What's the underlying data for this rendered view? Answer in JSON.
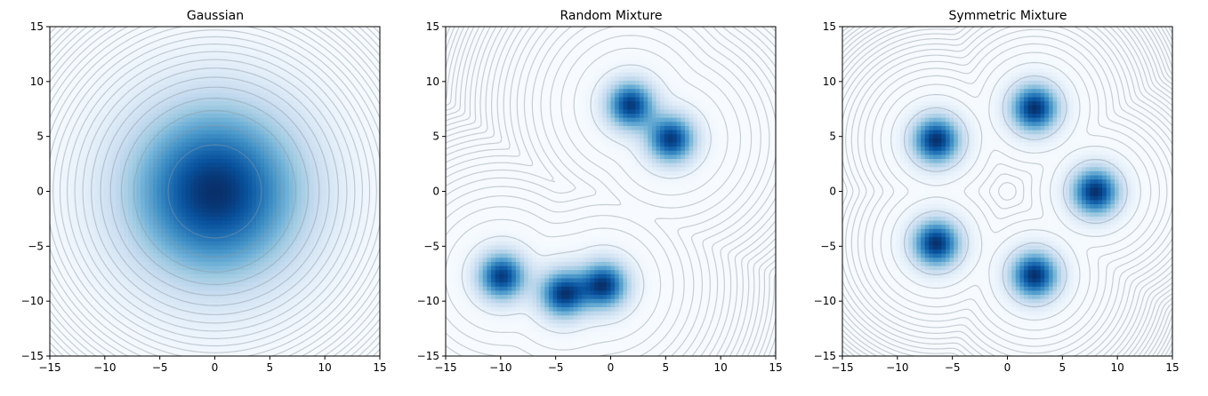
{
  "chart_data": [
    {
      "type": "heatmap",
      "title": "Gaussian",
      "xlim": [
        -15,
        15
      ],
      "ylim": [
        -15,
        15
      ],
      "xticks": [
        -15,
        -10,
        -5,
        0,
        5,
        10,
        15
      ],
      "yticks": [
        -15,
        -10,
        -5,
        0,
        5,
        10,
        15
      ],
      "xtick_labels": [
        "−15",
        "−10",
        "−5",
        "0",
        "5",
        "10",
        "15"
      ],
      "ytick_labels": [
        "−15",
        "−10",
        "−5",
        "0",
        "5",
        "10",
        "15"
      ],
      "colormap": "Blues",
      "contours": true,
      "components": [
        {
          "mean": [
            0,
            0
          ],
          "std": 5.5,
          "weight": 1.0
        }
      ]
    },
    {
      "type": "heatmap",
      "title": "Random Mixture",
      "xlim": [
        -15,
        15
      ],
      "ylim": [
        -15,
        15
      ],
      "xticks": [
        -15,
        -10,
        -5,
        0,
        5,
        10,
        15
      ],
      "yticks": [
        -15,
        -10,
        -5,
        0,
        5,
        10,
        15
      ],
      "xtick_labels": [
        "−15",
        "−10",
        "−5",
        "0",
        "5",
        "10",
        "15"
      ],
      "ytick_labels": [
        "−15",
        "−10",
        "−5",
        "0",
        "5",
        "10",
        "15"
      ],
      "colormap": "Blues",
      "contours": true,
      "components": [
        {
          "mean": [
            1.8,
            7.9
          ],
          "std": 1.5,
          "weight": 0.2
        },
        {
          "mean": [
            5.5,
            4.8
          ],
          "std": 1.5,
          "weight": 0.2
        },
        {
          "mean": [
            -9.9,
            -7.7
          ],
          "std": 1.5,
          "weight": 0.2
        },
        {
          "mean": [
            -4.3,
            -9.3
          ],
          "std": 1.5,
          "weight": 0.2
        },
        {
          "mean": [
            -0.6,
            -8.5
          ],
          "std": 1.5,
          "weight": 0.2
        }
      ]
    },
    {
      "type": "heatmap",
      "title": "Symmetric Mixture",
      "xlim": [
        -15,
        15
      ],
      "ylim": [
        -15,
        15
      ],
      "xticks": [
        -15,
        -10,
        -5,
        0,
        5,
        10,
        15
      ],
      "yticks": [
        -15,
        -10,
        -5,
        0,
        5,
        10,
        15
      ],
      "xtick_labels": [
        "−15",
        "−10",
        "−5",
        "0",
        "5",
        "10",
        "15"
      ],
      "ytick_labels": [
        "−15",
        "−10",
        "−5",
        "0",
        "5",
        "10",
        "15"
      ],
      "colormap": "Blues",
      "contours": true,
      "components": [
        {
          "mean": [
            8,
            0
          ],
          "std": 1.5,
          "weight": 0.2
        },
        {
          "mean": [
            2.47,
            7.61
          ],
          "std": 1.5,
          "weight": 0.2
        },
        {
          "mean": [
            -6.47,
            4.7
          ],
          "std": 1.5,
          "weight": 0.2
        },
        {
          "mean": [
            -6.47,
            -4.7
          ],
          "std": 1.5,
          "weight": 0.2
        },
        {
          "mean": [
            2.47,
            -7.61
          ],
          "std": 1.5,
          "weight": 0.2
        }
      ]
    }
  ]
}
